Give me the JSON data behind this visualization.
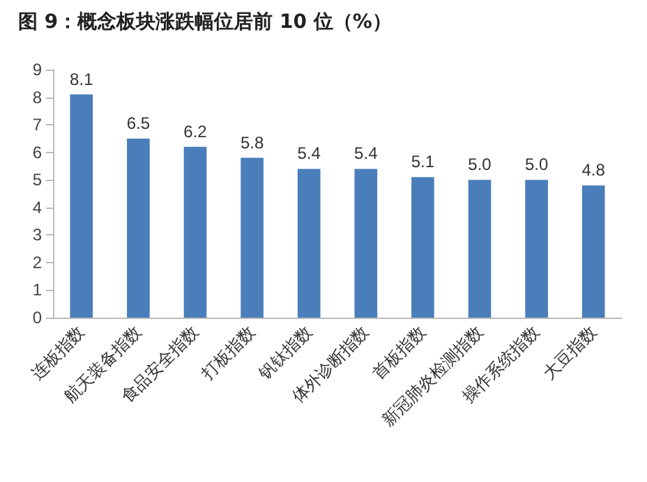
{
  "chart_data": {
    "type": "bar",
    "title": "图 9：概念板块涨跌幅位居前 10 位（%）",
    "categories": [
      "连板指数",
      "航天装备指数",
      "食品安全指数",
      "打板指数",
      "钒钛指数",
      "体外诊断指数",
      "首板指数",
      "新冠肺炎检测指数",
      "操作系统指数",
      "大豆指数"
    ],
    "values": [
      8.1,
      6.5,
      6.2,
      5.8,
      5.4,
      5.4,
      5.1,
      5.0,
      5.0,
      4.8
    ],
    "value_labels": [
      "8.1",
      "6.5",
      "6.2",
      "5.8",
      "5.4",
      "5.4",
      "5.1",
      "5.0",
      "5.0",
      "4.8"
    ],
    "color": "#4a7ebb",
    "ylim": [
      0,
      9
    ],
    "yticks": [
      0,
      1,
      2,
      3,
      4,
      5,
      6,
      7,
      8,
      9
    ],
    "grid": false
  }
}
